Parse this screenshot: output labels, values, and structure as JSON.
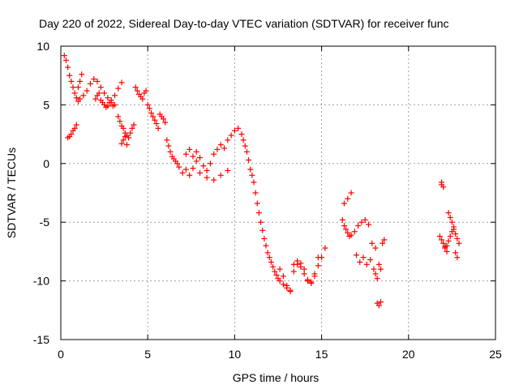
{
  "chart_data": {
    "type": "scatter",
    "title": "Day 220 of 2022, Sidereal Day-to-day VTEC variation (SDTVAR) for receiver func",
    "xlabel": "GPS time / hours",
    "ylabel": "SDTVAR / TECUs",
    "xlim": [
      0,
      25
    ],
    "ylim": [
      -15,
      10
    ],
    "xticks": [
      0,
      5,
      10,
      15,
      20,
      25
    ],
    "yticks": [
      -15,
      -10,
      -5,
      0,
      5,
      10
    ],
    "grid": true,
    "marker": "plus",
    "color": "#ff0000",
    "series": [
      {
        "name": "SDTVAR",
        "x": [
          0.2,
          0.3,
          0.4,
          0.5,
          0.6,
          0.7,
          0.8,
          0.9,
          1.0,
          1.1,
          1.3,
          1.5,
          1.7,
          1.9,
          2.1,
          2.3,
          2.5,
          2.7,
          2.9,
          3.1,
          3.3,
          3.5,
          0.4,
          0.5,
          0.6,
          0.7,
          0.8,
          0.9,
          1.0,
          1.1,
          1.2,
          2.0,
          2.1,
          2.2,
          2.3,
          2.4,
          2.5,
          2.6,
          2.7,
          2.8,
          2.9,
          3.0,
          3.1,
          3.3,
          3.4,
          3.5,
          3.6,
          3.7,
          3.8,
          3.9,
          4.0,
          4.1,
          4.2,
          3.5,
          3.6,
          3.7,
          3.8,
          4.3,
          4.4,
          4.5,
          4.6,
          4.7,
          4.8,
          4.9,
          5.0,
          5.1,
          5.2,
          5.3,
          5.4,
          5.5,
          5.6,
          5.7,
          5.8,
          5.9,
          6.0,
          6.1,
          6.2,
          6.3,
          6.4,
          6.5,
          6.6,
          6.7,
          6.8,
          7.0,
          7.2,
          7.4,
          7.6,
          7.8,
          8.0,
          8.2,
          8.4,
          8.6,
          8.8,
          9.0,
          9.2,
          9.4,
          9.6,
          9.8,
          10.0,
          10.2,
          10.4,
          10.5,
          10.6,
          10.7,
          10.8,
          10.9,
          7.2,
          7.4,
          7.6,
          7.8,
          8.0,
          8.4,
          8.8,
          9.2,
          9.6,
          11.0,
          11.1,
          11.2,
          11.3,
          11.4,
          11.5,
          11.6,
          11.7,
          11.8,
          11.9,
          12.0,
          12.1,
          12.2,
          12.3,
          12.4,
          12.5,
          12.6,
          12.8,
          13.0,
          13.2,
          13.4,
          13.6,
          13.8,
          14.0,
          14.2,
          14.4,
          14.6,
          14.8,
          15.0,
          15.2,
          12.6,
          12.8,
          13.0,
          13.2,
          13.4,
          13.6,
          13.8,
          14.0,
          14.2,
          14.4,
          14.6,
          14.8,
          16.2,
          16.3,
          16.4,
          16.5,
          16.6,
          16.7,
          16.3,
          16.5,
          16.7,
          16.9,
          17.1,
          17.3,
          17.5,
          17.7,
          17.9,
          18.1,
          17.0,
          17.2,
          17.4,
          17.6,
          17.8,
          18.0,
          18.1,
          18.2,
          18.3,
          18.4,
          18.5,
          18.6,
          18.2,
          18.3,
          18.4,
          21.8,
          21.9,
          22.0,
          22.1,
          22.2,
          22.3,
          22.4,
          22.5,
          22.6,
          22.7,
          22.8,
          22.9,
          21.9,
          22.0,
          22.1,
          22.2,
          22.3,
          22.4,
          22.5,
          22.6,
          22.7,
          22.8,
          21.9
        ],
        "y": [
          9.2,
          8.8,
          8.2,
          7.5,
          7.0,
          6.5,
          6.0,
          5.6,
          5.3,
          5.5,
          5.8,
          6.2,
          6.8,
          7.2,
          7.0,
          6.5,
          6.0,
          5.6,
          5.2,
          5.8,
          6.4,
          6.9,
          2.2,
          2.3,
          2.5,
          2.8,
          3.0,
          3.3,
          6.5,
          7.0,
          7.6,
          5.5,
          5.8,
          6.0,
          5.4,
          5.2,
          5.0,
          4.8,
          4.9,
          5.2,
          5.4,
          4.9,
          5.0,
          4.0,
          3.6,
          3.2,
          3.0,
          2.6,
          2.4,
          2.2,
          2.6,
          3.0,
          3.3,
          1.7,
          2.0,
          2.3,
          1.6,
          6.5,
          6.2,
          5.9,
          5.7,
          5.5,
          6.0,
          6.2,
          5.0,
          4.7,
          4.3,
          4.0,
          3.7,
          3.4,
          3.0,
          4.2,
          4.0,
          3.8,
          3.5,
          2.0,
          1.5,
          1.0,
          0.6,
          0.4,
          0.2,
          0.0,
          -0.3,
          -0.8,
          -0.5,
          -1.0,
          -0.4,
          0.2,
          0.5,
          -0.2,
          -0.6,
          0.0,
          0.8,
          1.2,
          1.6,
          1.3,
          2.0,
          2.4,
          2.8,
          3.0,
          2.5,
          2.0,
          1.5,
          1.0,
          0.3,
          -0.5,
          0.8,
          1.2,
          0.6,
          1.0,
          -0.8,
          -1.2,
          -1.4,
          -1.0,
          -0.6,
          -1.0,
          -1.6,
          -2.5,
          -3.4,
          -4.2,
          -5.0,
          -5.7,
          -6.4,
          -7.0,
          -7.6,
          -8.0,
          -8.4,
          -8.8,
          -9.2,
          -9.5,
          -9.8,
          -10.0,
          -10.3,
          -10.6,
          -10.9,
          -9.2,
          -8.6,
          -8.8,
          -9.4,
          -9.9,
          -10.1,
          -9.6,
          -8.7,
          -8.0,
          -7.2,
          -9.0,
          -9.6,
          -10.4,
          -10.8,
          -8.6,
          -8.3,
          -8.5,
          -9.0,
          -10.0,
          -10.2,
          -9.4,
          -8.0,
          -4.8,
          -5.3,
          -5.6,
          -5.9,
          -6.2,
          -6.1,
          -3.4,
          -3.0,
          -2.5,
          -5.8,
          -5.3,
          -5.0,
          -4.8,
          -5.2,
          -6.8,
          -7.2,
          -7.8,
          -8.4,
          -8.0,
          -8.6,
          -8.2,
          -9.0,
          -9.4,
          -9.8,
          -8.6,
          -9.0,
          -6.8,
          -6.5,
          -11.9,
          -12.1,
          -11.8,
          -6.2,
          -6.5,
          -6.8,
          -7.1,
          -7.0,
          -6.6,
          -6.2,
          -5.8,
          -5.6,
          -6.0,
          -6.4,
          -6.8,
          -1.8,
          -2.0,
          -7.2,
          -7.5,
          -4.2,
          -4.6,
          -5.0,
          -5.4,
          -7.6,
          -8.0,
          -1.6
        ]
      }
    ]
  }
}
